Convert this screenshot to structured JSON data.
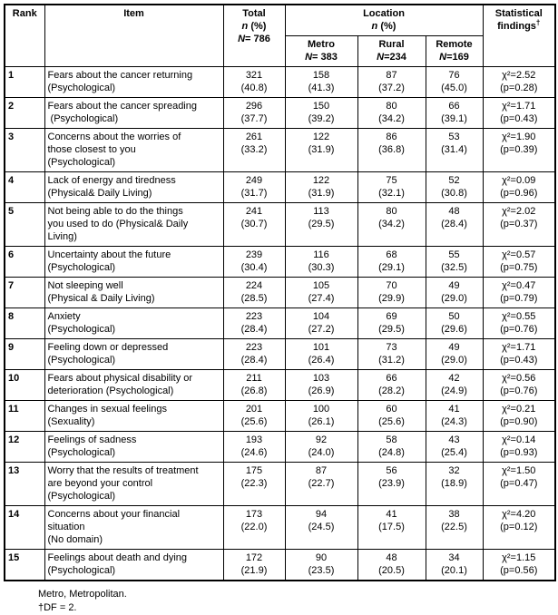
{
  "header": {
    "rank": "Rank",
    "item": "Item",
    "total": {
      "title": "Total",
      "n_label": "n",
      "n_unit": " (%)",
      "N_label": "N",
      "N_value": "= 786"
    },
    "location": {
      "title": "Location",
      "n_label": "n",
      "n_unit": " (%)"
    },
    "metro": {
      "title": "Metro",
      "N_label": "N",
      "N_value": "= 383"
    },
    "rural": {
      "title": "Rural",
      "N_label": "N",
      "N_value": "=234"
    },
    "remote": {
      "title": "Remote",
      "N_label": "N",
      "N_value": "=169"
    },
    "stats": {
      "line1": "Statistical",
      "line2": "findings",
      "dagger": "†"
    }
  },
  "rows": [
    {
      "rank": "1",
      "item": [
        "Fears about the cancer returning",
        "(Psychological)"
      ],
      "total": [
        "321",
        "(40.8)"
      ],
      "metro": [
        "158",
        "(41.3)"
      ],
      "rural": [
        "87",
        "(37.2)"
      ],
      "remote": [
        "76",
        "(45.0)"
      ],
      "stats": [
        "χ²=2.52",
        "(p=0.28)"
      ]
    },
    {
      "rank": "2",
      "item": [
        "Fears about the cancer spreading",
        " (Psychological)"
      ],
      "total": [
        "296",
        "(37.7)"
      ],
      "metro": [
        "150",
        "(39.2)"
      ],
      "rural": [
        "80",
        "(34.2)"
      ],
      "remote": [
        "66",
        "(39.1)"
      ],
      "stats": [
        "χ²=1.71",
        "(p=0.43)"
      ]
    },
    {
      "rank": "3",
      "item": [
        "Concerns about the worries of",
        "those closest to you",
        "(Psychological)"
      ],
      "total": [
        "261",
        "(33.2)"
      ],
      "metro": [
        "122",
        "(31.9)"
      ],
      "rural": [
        "86",
        "(36.8)"
      ],
      "remote": [
        "53",
        "(31.4)"
      ],
      "stats": [
        "χ²=1.90",
        "(p=0.39)"
      ]
    },
    {
      "rank": "4",
      "item": [
        "Lack of energy and tiredness",
        "(Physical& Daily Living)"
      ],
      "total": [
        "249",
        "(31.7)"
      ],
      "metro": [
        "122",
        "(31.9)"
      ],
      "rural": [
        "75",
        "(32.1)"
      ],
      "remote": [
        "52",
        "(30.8)"
      ],
      "stats": [
        "χ²=0.09",
        "(p=0.96)"
      ]
    },
    {
      "rank": "5",
      "item": [
        "Not being able to do the things",
        "you used to do (Physical& Daily",
        "Living)"
      ],
      "total": [
        "241",
        "(30.7)"
      ],
      "metro": [
        "113",
        "(29.5)"
      ],
      "rural": [
        "80",
        "(34.2)"
      ],
      "remote": [
        "48",
        "(28.4)"
      ],
      "stats": [
        "χ²=2.02",
        "(p=0.37)"
      ]
    },
    {
      "rank": "6",
      "item": [
        "Uncertainty about the future",
        "(Psychological)"
      ],
      "total": [
        "239",
        "(30.4)"
      ],
      "metro": [
        "116",
        "(30.3)"
      ],
      "rural": [
        "68",
        "(29.1)"
      ],
      "remote": [
        "55",
        "(32.5)"
      ],
      "stats": [
        "χ²=0.57",
        "(p=0.75)"
      ]
    },
    {
      "rank": "7",
      "item": [
        "Not sleeping well",
        "(Physical & Daily Living)"
      ],
      "total": [
        "224",
        "(28.5)"
      ],
      "metro": [
        "105",
        "(27.4)"
      ],
      "rural": [
        "70",
        "(29.9)"
      ],
      "remote": [
        "49",
        "(29.0)"
      ],
      "stats": [
        "χ²=0.47",
        "(p=0.79)"
      ]
    },
    {
      "rank": "8",
      "item": [
        "Anxiety",
        "(Psychological)"
      ],
      "total": [
        "223",
        "(28.4)"
      ],
      "metro": [
        "104",
        "(27.2)"
      ],
      "rural": [
        "69",
        "(29.5)"
      ],
      "remote": [
        "50",
        "(29.6)"
      ],
      "stats": [
        "χ²=0.55",
        "(p=0.76)"
      ]
    },
    {
      "rank": "9",
      "item": [
        "Feeling down or depressed",
        "(Psychological)"
      ],
      "total": [
        "223",
        "(28.4)"
      ],
      "metro": [
        "101",
        "(26.4)"
      ],
      "rural": [
        "73",
        "(31.2)"
      ],
      "remote": [
        "49",
        "(29.0)"
      ],
      "stats": [
        "χ²=1.71",
        "(p=0.43)"
      ]
    },
    {
      "rank": "10",
      "item": [
        "Fears about physical disability or",
        "deterioration (Psychological)"
      ],
      "total": [
        "211",
        "(26.8)"
      ],
      "metro": [
        "103",
        "(26.9)"
      ],
      "rural": [
        "66",
        "(28.2)"
      ],
      "remote": [
        "42",
        "(24.9)"
      ],
      "stats": [
        "χ²=0.56",
        "(p=0.76)"
      ]
    },
    {
      "rank": "11",
      "item": [
        "Changes in sexual feelings",
        "(Sexuality)"
      ],
      "total": [
        "201",
        "(25.6)"
      ],
      "metro": [
        "100",
        "(26.1)"
      ],
      "rural": [
        "60",
        "(25.6)"
      ],
      "remote": [
        "41",
        "(24.3)"
      ],
      "stats": [
        "χ²=0.21",
        "(p=0.90)"
      ]
    },
    {
      "rank": "12",
      "item": [
        "Feelings of sadness",
        "(Psychological)"
      ],
      "total": [
        "193",
        "(24.6)"
      ],
      "metro": [
        "92",
        "(24.0)"
      ],
      "rural": [
        "58",
        "(24.8)"
      ],
      "remote": [
        "43",
        "(25.4)"
      ],
      "stats": [
        "χ²=0.14",
        "(p=0.93)"
      ]
    },
    {
      "rank": "13",
      "item": [
        "Worry that the results of treatment",
        "are beyond your control",
        "(Psychological)"
      ],
      "total": [
        "175",
        "(22.3)"
      ],
      "metro": [
        "87",
        "(22.7)"
      ],
      "rural": [
        "56",
        "(23.9)"
      ],
      "remote": [
        "32",
        "(18.9)"
      ],
      "stats": [
        "χ²=1.50",
        "(p=0.47)"
      ]
    },
    {
      "rank": "14",
      "item": [
        "Concerns about your financial",
        "situation",
        "(No domain)"
      ],
      "total": [
        "173",
        "(22.0)"
      ],
      "metro": [
        "94",
        "(24.5)"
      ],
      "rural": [
        "41",
        "(17.5)"
      ],
      "remote": [
        "38",
        "(22.5)"
      ],
      "stats": [
        "χ²=4.20",
        "(p=0.12)"
      ]
    },
    {
      "rank": "15",
      "item": [
        "Feelings about death and dying",
        "(Psychological)"
      ],
      "total": [
        "172",
        "(21.9)"
      ],
      "metro": [
        "90",
        "(23.5)"
      ],
      "rural": [
        "48",
        "(20.5)"
      ],
      "remote": [
        "34",
        "(20.1)"
      ],
      "stats": [
        "χ²=1.15",
        "(p=0.56)"
      ]
    }
  ],
  "footnotes": [
    "Metro, Metropolitan.",
    "†DF = 2."
  ]
}
